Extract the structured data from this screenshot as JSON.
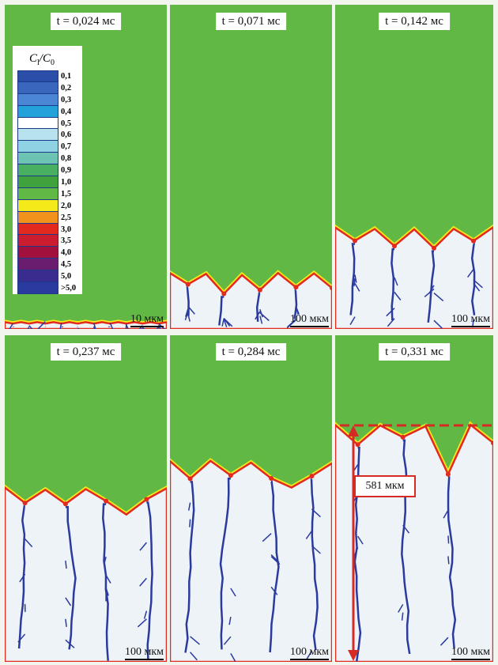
{
  "legend": {
    "title_main": "C",
    "title_sub_l": "l",
    "title_sep": "/",
    "title_main2": "C",
    "title_sub_0": "0",
    "items": [
      {
        "label": "0,1",
        "color": "#2b4ea8"
      },
      {
        "label": "0,2",
        "color": "#3a66be"
      },
      {
        "label": "0,3",
        "color": "#4a86d4"
      },
      {
        "label": "0,4",
        "color": "#22a2d8"
      },
      {
        "label": "0,5",
        "color": "#ffffff"
      },
      {
        "label": "0,6",
        "color": "#b8e2ee"
      },
      {
        "label": "0,7",
        "color": "#8ed2e4"
      },
      {
        "label": "0,8",
        "color": "#6ec4b4"
      },
      {
        "label": "0,9",
        "color": "#48b060"
      },
      {
        "label": "1,0",
        "color": "#3fa23c"
      },
      {
        "label": "1,5",
        "color": "#62b845"
      },
      {
        "label": "2,0",
        "color": "#f4ea1a"
      },
      {
        "label": "2,5",
        "color": "#f0921c"
      },
      {
        "label": "3,0",
        "color": "#e22a1e"
      },
      {
        "label": "3,5",
        "color": "#cc1c30"
      },
      {
        "label": "4,0",
        "color": "#a2103e"
      },
      {
        "label": "4,5",
        "color": "#6a1c6e"
      },
      {
        "label": "5,0",
        "color": "#3a2c8e"
      },
      {
        "label": ">5,0",
        "color": "#2a3a9e"
      }
    ]
  },
  "panels": [
    {
      "time": "t = 0,024 мс",
      "scale": "10 мкм",
      "front_fraction": 0.02
    },
    {
      "time": "t = 0,071 мс",
      "scale": "100 мкм",
      "front_fraction": 0.16
    },
    {
      "time": "t = 0,142 мс",
      "scale": "100 мкм",
      "front_fraction": 0.3
    },
    {
      "time": "t = 0,237 мс",
      "scale": "100 мкм",
      "front_fraction": 0.52
    },
    {
      "time": "t = 0,284 мс",
      "scale": "100 мкм",
      "front_fraction": 0.6
    },
    {
      "time": "t = 0,331 мс",
      "scale": "100 мкм",
      "front_fraction": 0.71
    }
  ],
  "annotation": {
    "length_label": "581 мкм",
    "arrow_color": "#d62a24"
  },
  "colors": {
    "liquid": "#62b845",
    "solid": "#eef3f8",
    "dendrite": "#2a3a9e",
    "interface": "#e22a1e",
    "interface_glow": "#f4ea1a"
  }
}
